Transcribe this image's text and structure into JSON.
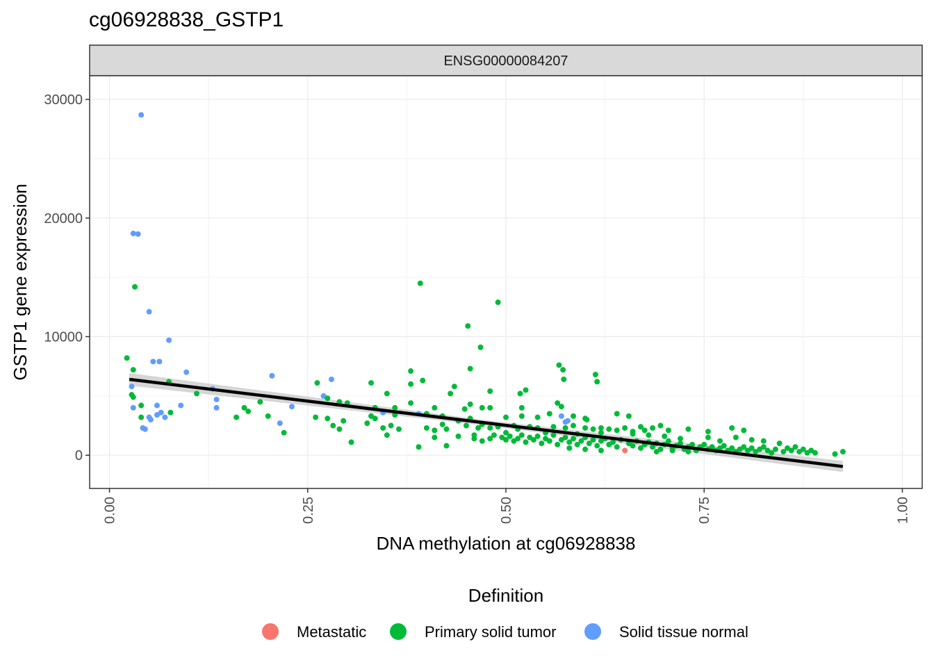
{
  "chart_data": {
    "type": "scatter",
    "title": "cg06928838_GSTP1",
    "facet_label": "ENSG00000084207",
    "xlabel": "DNA methylation at cg06928838",
    "ylabel": "GSTP1 gene expression",
    "xlim": [
      -0.025,
      1.025
    ],
    "ylim": [
      -2800,
      32000
    ],
    "x_ticks": [
      0.0,
      0.25,
      0.5,
      0.75,
      1.0
    ],
    "x_tick_labels": [
      "0.00",
      "0.25",
      "0.50",
      "0.75",
      "1.00"
    ],
    "y_ticks": [
      0,
      10000,
      20000,
      30000
    ],
    "y_tick_labels": [
      "0",
      "10000",
      "20000",
      "30000"
    ],
    "grid": true,
    "legend": {
      "title": "Definition",
      "position": "bottom",
      "entries": [
        {
          "name": "Metastatic",
          "color": "#F8766D"
        },
        {
          "name": "Primary solid tumor",
          "color": "#00BA38"
        },
        {
          "name": "Solid tissue normal",
          "color": "#619CFF"
        }
      ]
    },
    "regression_line": {
      "x": [
        0.025,
        0.925
      ],
      "y": [
        6400,
        -950
      ],
      "color": "#000000",
      "ci_band": true
    },
    "series": [
      {
        "name": "Solid tissue normal",
        "color": "#619CFF",
        "points": [
          [
            0.04,
            28700
          ],
          [
            0.03,
            18700
          ],
          [
            0.036,
            18650
          ],
          [
            0.05,
            12100
          ],
          [
            0.075,
            9700
          ],
          [
            0.055,
            7900
          ],
          [
            0.063,
            7900
          ],
          [
            0.097,
            7000
          ],
          [
            0.205,
            6700
          ],
          [
            0.028,
            5800
          ],
          [
            0.28,
            6400
          ],
          [
            0.27,
            5000
          ],
          [
            0.13,
            5600
          ],
          [
            0.135,
            4700
          ],
          [
            0.03,
            4000
          ],
          [
            0.06,
            4200
          ],
          [
            0.09,
            4200
          ],
          [
            0.135,
            4000
          ],
          [
            0.23,
            4100
          ],
          [
            0.05,
            3200
          ],
          [
            0.06,
            3400
          ],
          [
            0.065,
            3600
          ],
          [
            0.07,
            3200
          ],
          [
            0.052,
            3000
          ],
          [
            0.215,
            2700
          ],
          [
            0.042,
            2300
          ],
          [
            0.045,
            2200
          ],
          [
            0.345,
            3600
          ],
          [
            0.39,
            3500
          ],
          [
            0.575,
            2800
          ],
          [
            0.57,
            3300
          ],
          [
            0.578,
            2900
          ]
        ]
      },
      {
        "name": "Metastatic",
        "color": "#F8766D",
        "points": [
          [
            0.65,
            400
          ]
        ]
      },
      {
        "name": "Primary solid tumor",
        "color": "#00BA38",
        "points": [
          [
            0.392,
            14500
          ],
          [
            0.49,
            12900
          ],
          [
            0.032,
            14200
          ],
          [
            0.452,
            10900
          ],
          [
            0.468,
            9100
          ],
          [
            0.022,
            8200
          ],
          [
            0.03,
            7200
          ],
          [
            0.455,
            7300
          ],
          [
            0.38,
            7100
          ],
          [
            0.567,
            7600
          ],
          [
            0.572,
            7200
          ],
          [
            0.613,
            6800
          ],
          [
            0.615,
            6200
          ],
          [
            0.573,
            6400
          ],
          [
            0.075,
            6200
          ],
          [
            0.395,
            6300
          ],
          [
            0.262,
            6100
          ],
          [
            0.33,
            6100
          ],
          [
            0.38,
            6000
          ],
          [
            0.435,
            5800
          ],
          [
            0.48,
            5400
          ],
          [
            0.525,
            5500
          ],
          [
            0.518,
            5200
          ],
          [
            0.35,
            5200
          ],
          [
            0.43,
            5200
          ],
          [
            0.11,
            5200
          ],
          [
            0.028,
            5100
          ],
          [
            0.03,
            4900
          ],
          [
            0.275,
            4800
          ],
          [
            0.19,
            4500
          ],
          [
            0.29,
            4500
          ],
          [
            0.3,
            4400
          ],
          [
            0.38,
            4400
          ],
          [
            0.455,
            4300
          ],
          [
            0.565,
            4400
          ],
          [
            0.57,
            4100
          ],
          [
            0.04,
            4200
          ],
          [
            0.17,
            4000
          ],
          [
            0.335,
            4000
          ],
          [
            0.36,
            4000
          ],
          [
            0.41,
            4000
          ],
          [
            0.448,
            3900
          ],
          [
            0.47,
            4000
          ],
          [
            0.48,
            4000
          ],
          [
            0.52,
            4000
          ],
          [
            0.175,
            3700
          ],
          [
            0.077,
            3600
          ],
          [
            0.2,
            3300
          ],
          [
            0.16,
            3200
          ],
          [
            0.04,
            3200
          ],
          [
            0.26,
            3200
          ],
          [
            0.275,
            3100
          ],
          [
            0.295,
            2900
          ],
          [
            0.33,
            3300
          ],
          [
            0.335,
            3100
          ],
          [
            0.36,
            3400
          ],
          [
            0.4,
            3500
          ],
          [
            0.42,
            3300
          ],
          [
            0.44,
            2900
          ],
          [
            0.455,
            3100
          ],
          [
            0.5,
            3200
          ],
          [
            0.52,
            3300
          ],
          [
            0.54,
            3200
          ],
          [
            0.555,
            3500
          ],
          [
            0.585,
            3300
          ],
          [
            0.6,
            3100
          ],
          [
            0.602,
            3000
          ],
          [
            0.64,
            3500
          ],
          [
            0.655,
            3300
          ],
          [
            0.282,
            2500
          ],
          [
            0.29,
            2200
          ],
          [
            0.325,
            2700
          ],
          [
            0.345,
            2300
          ],
          [
            0.355,
            2500
          ],
          [
            0.365,
            2200
          ],
          [
            0.4,
            2300
          ],
          [
            0.41,
            2100
          ],
          [
            0.42,
            2600
          ],
          [
            0.425,
            2200
          ],
          [
            0.45,
            2500
          ],
          [
            0.465,
            2300
          ],
          [
            0.47,
            2600
          ],
          [
            0.48,
            2300
          ],
          [
            0.49,
            2400
          ],
          [
            0.51,
            2500
          ],
          [
            0.515,
            2200
          ],
          [
            0.53,
            2400
          ],
          [
            0.54,
            2300
          ],
          [
            0.56,
            2400
          ],
          [
            0.575,
            2300
          ],
          [
            0.585,
            2500
          ],
          [
            0.6,
            2300
          ],
          [
            0.61,
            2200
          ],
          [
            0.62,
            2300
          ],
          [
            0.63,
            2200
          ],
          [
            0.64,
            2100
          ],
          [
            0.65,
            2300
          ],
          [
            0.66,
            2000
          ],
          [
            0.67,
            2400
          ],
          [
            0.675,
            2100
          ],
          [
            0.685,
            2300
          ],
          [
            0.695,
            2500
          ],
          [
            0.705,
            2100
          ],
          [
            0.73,
            2200
          ],
          [
            0.755,
            2000
          ],
          [
            0.785,
            2300
          ],
          [
            0.8,
            2100
          ],
          [
            0.22,
            1900
          ],
          [
            0.305,
            1100
          ],
          [
            0.35,
            1700
          ],
          [
            0.39,
            700
          ],
          [
            0.41,
            1500
          ],
          [
            0.425,
            800
          ],
          [
            0.44,
            1600
          ],
          [
            0.46,
            1400
          ],
          [
            0.47,
            1200
          ],
          [
            0.48,
            1400
          ],
          [
            0.485,
            1700
          ],
          [
            0.495,
            1500
          ],
          [
            0.5,
            1300
          ],
          [
            0.505,
            1600
          ],
          [
            0.51,
            1200
          ],
          [
            0.515,
            1400
          ],
          [
            0.52,
            1700
          ],
          [
            0.525,
            1100
          ],
          [
            0.53,
            1500
          ],
          [
            0.535,
            1300
          ],
          [
            0.54,
            1600
          ],
          [
            0.545,
            1000
          ],
          [
            0.55,
            1400
          ],
          [
            0.555,
            1200
          ],
          [
            0.56,
            1700
          ],
          [
            0.565,
            900
          ],
          [
            0.57,
            1300
          ],
          [
            0.575,
            1500
          ],
          [
            0.58,
            1100
          ],
          [
            0.585,
            1400
          ],
          [
            0.59,
            900
          ],
          [
            0.595,
            1200
          ],
          [
            0.6,
            1500
          ],
          [
            0.605,
            1000
          ],
          [
            0.61,
            1300
          ],
          [
            0.615,
            800
          ],
          [
            0.62,
            1200
          ],
          [
            0.625,
            1400
          ],
          [
            0.63,
            900
          ],
          [
            0.635,
            1100
          ],
          [
            0.64,
            700
          ],
          [
            0.645,
            1300
          ],
          [
            0.655,
            1000
          ],
          [
            0.66,
            800
          ],
          [
            0.665,
            1200
          ],
          [
            0.67,
            600
          ],
          [
            0.675,
            900
          ],
          [
            0.68,
            1100
          ],
          [
            0.685,
            700
          ],
          [
            0.69,
            1000
          ],
          [
            0.695,
            500
          ],
          [
            0.7,
            900
          ],
          [
            0.705,
            1200
          ],
          [
            0.71,
            600
          ],
          [
            0.715,
            800
          ],
          [
            0.72,
            1000
          ],
          [
            0.725,
            500
          ],
          [
            0.73,
            700
          ],
          [
            0.735,
            900
          ],
          [
            0.74,
            400
          ],
          [
            0.745,
            700
          ],
          [
            0.75,
            900
          ],
          [
            0.755,
            500
          ],
          [
            0.76,
            700
          ],
          [
            0.765,
            400
          ],
          [
            0.77,
            600
          ],
          [
            0.775,
            800
          ],
          [
            0.78,
            400
          ],
          [
            0.785,
            600
          ],
          [
            0.79,
            300
          ],
          [
            0.795,
            500
          ],
          [
            0.8,
            700
          ],
          [
            0.805,
            400
          ],
          [
            0.81,
            600
          ],
          [
            0.815,
            300
          ],
          [
            0.82,
            500
          ],
          [
            0.825,
            700
          ],
          [
            0.83,
            400
          ],
          [
            0.835,
            200
          ],
          [
            0.84,
            500
          ],
          [
            0.85,
            300
          ],
          [
            0.855,
            600
          ],
          [
            0.86,
            400
          ],
          [
            0.865,
            700
          ],
          [
            0.87,
            300
          ],
          [
            0.875,
            500
          ],
          [
            0.88,
            200
          ],
          [
            0.885,
            400
          ],
          [
            0.89,
            200
          ],
          [
            0.915,
            100
          ],
          [
            0.925,
            300
          ],
          [
            0.79,
            1500
          ],
          [
            0.81,
            1300
          ],
          [
            0.825,
            1200
          ],
          [
            0.845,
            1000
          ],
          [
            0.755,
            1500
          ],
          [
            0.77,
            1200
          ],
          [
            0.72,
            1400
          ],
          [
            0.7,
            1600
          ],
          [
            0.68,
            1700
          ],
          [
            0.66,
            1800
          ],
          [
            0.62,
            1900
          ],
          [
            0.59,
            1800
          ],
          [
            0.55,
            1900
          ],
          [
            0.5,
            1900
          ],
          [
            0.46,
            1700
          ],
          [
            0.58,
            600
          ],
          [
            0.6,
            500
          ],
          [
            0.62,
            400
          ],
          [
            0.69,
            300
          ],
          [
            0.71,
            400
          ],
          [
            0.73,
            300
          ]
        ]
      }
    ]
  }
}
